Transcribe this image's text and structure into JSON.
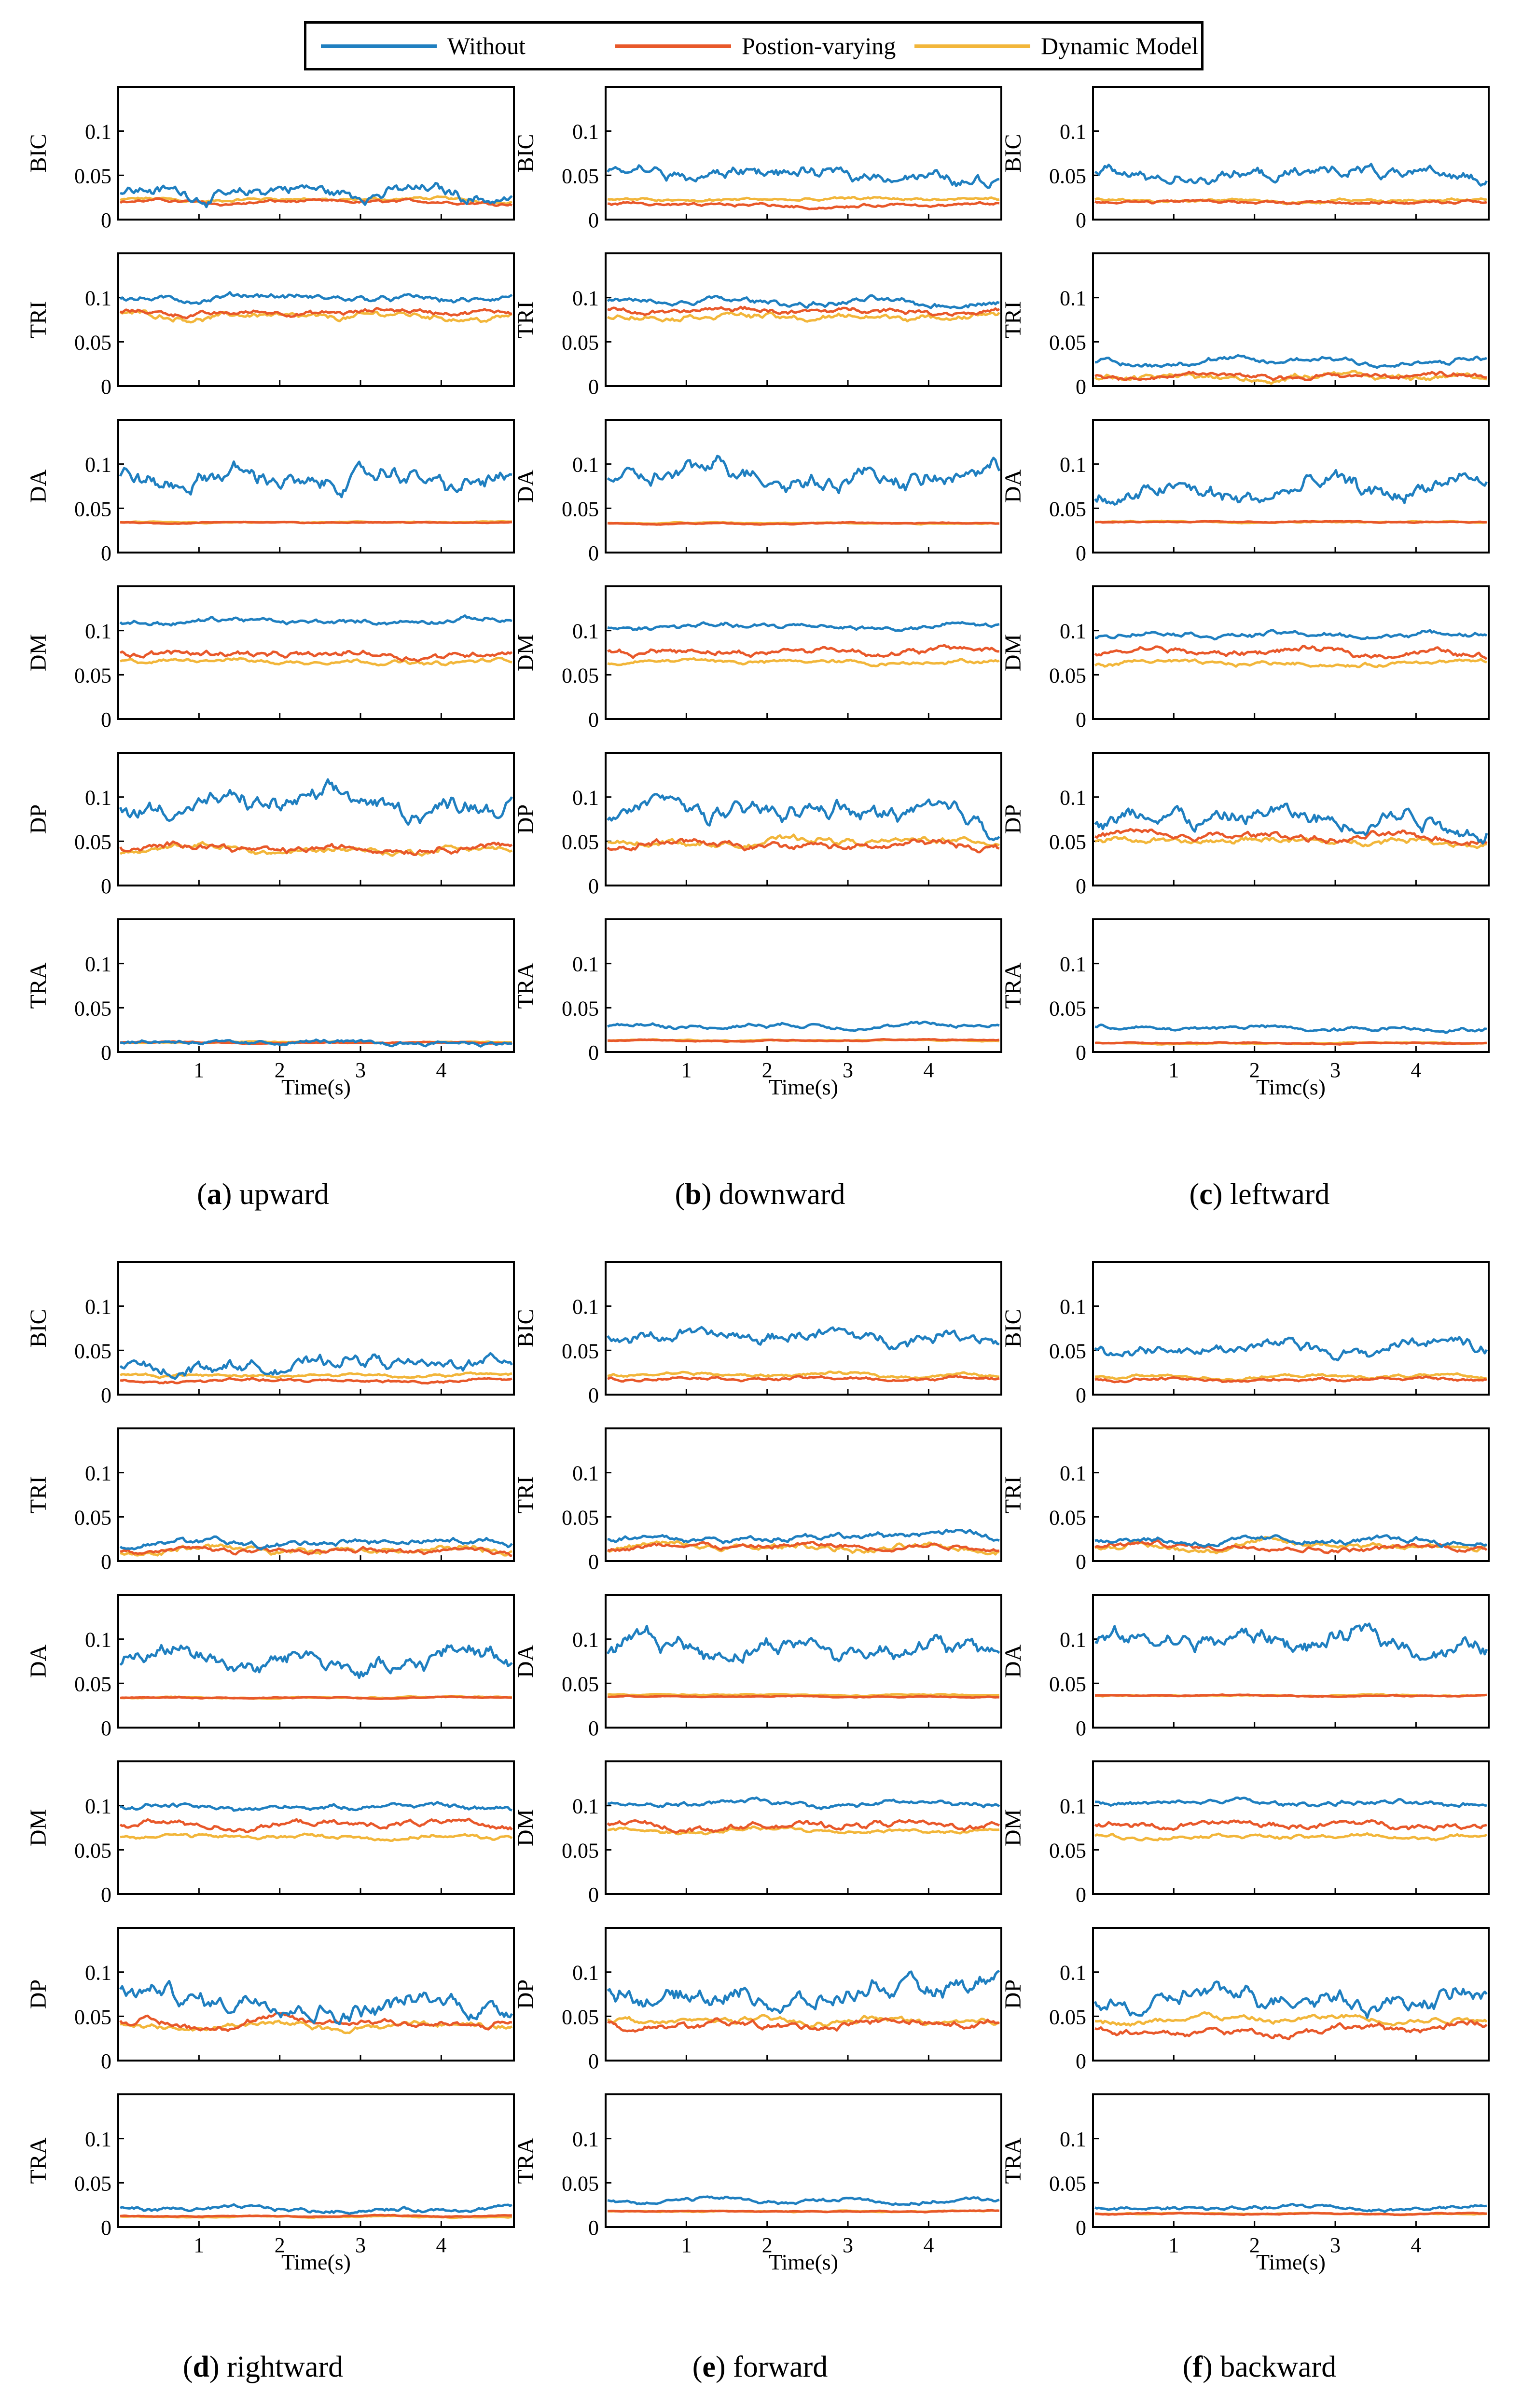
{
  "legend": {
    "items": [
      {
        "label": "Without",
        "color": "#1f7fc0"
      },
      {
        "label": "Postion-varying",
        "color": "#e8582a"
      },
      {
        "label": "Dynamic Model",
        "color": "#f2b63a"
      }
    ]
  },
  "panels": [
    {
      "letter": "a",
      "name": "upward",
      "xlabel": "Time(s)"
    },
    {
      "letter": "b",
      "name": "downward",
      "xlabel": "Time(s)"
    },
    {
      "letter": "c",
      "name": "leftward",
      "xlabel": "Timc(s)"
    },
    {
      "letter": "d",
      "name": "rightward",
      "xlabel": "Time(s)"
    },
    {
      "letter": "e",
      "name": "forward",
      "xlabel": "Time(s)"
    },
    {
      "letter": "f",
      "name": "backward",
      "xlabel": "Time(s)"
    }
  ],
  "chart_data": {
    "type": "line",
    "muscles": [
      "BIC",
      "TRI",
      "DA",
      "DM",
      "DP",
      "TRA"
    ],
    "x_range": [
      0,
      4.9
    ],
    "ylim": [
      0,
      0.15
    ],
    "x_ticks": [
      1,
      2,
      3,
      4
    ],
    "y_ticks": [
      0,
      0.05,
      0.1
    ],
    "y_tick_labels": [
      "0",
      "0.05",
      "0.1"
    ],
    "series_names": [
      "Without",
      "Postion-varying",
      "Dynamic Model"
    ],
    "note_levels": "approximate mean levels [Without, Postion-varying, Dynamic Model] per muscle per panel",
    "levels": {
      "a": {
        "BIC": [
          0.03,
          0.02,
          0.022
        ],
        "TRI": [
          0.098,
          0.083,
          0.08
        ],
        "DA": [
          0.08,
          0.034,
          0.034
        ],
        "DM": [
          0.11,
          0.075,
          0.065
        ],
        "DP": [
          0.09,
          0.043,
          0.04
        ],
        "TRA": [
          0.012,
          0.011,
          0.011
        ]
      },
      "b": {
        "BIC": [
          0.05,
          0.016,
          0.022
        ],
        "TRI": [
          0.095,
          0.085,
          0.078
        ],
        "DA": [
          0.085,
          0.033,
          0.033
        ],
        "DM": [
          0.105,
          0.077,
          0.065
        ],
        "DP": [
          0.085,
          0.045,
          0.05
        ],
        "TRA": [
          0.03,
          0.013,
          0.013
        ]
      },
      "c": {
        "BIC": [
          0.05,
          0.02,
          0.022
        ],
        "TRI": [
          0.027,
          0.012,
          0.012
        ],
        "DA": [
          0.065,
          0.035,
          0.035
        ],
        "DM": [
          0.095,
          0.075,
          0.063
        ],
        "DP": [
          0.07,
          0.055,
          0.05
        ],
        "TRA": [
          0.027,
          0.01,
          0.01
        ]
      },
      "d": {
        "BIC": [
          0.035,
          0.016,
          0.022
        ],
        "TRI": [
          0.02,
          0.012,
          0.012
        ],
        "DA": [
          0.08,
          0.034,
          0.034
        ],
        "DM": [
          0.1,
          0.078,
          0.065
        ],
        "DP": [
          0.07,
          0.042,
          0.04
        ],
        "TRA": [
          0.02,
          0.012,
          0.012
        ]
      },
      "e": {
        "BIC": [
          0.065,
          0.018,
          0.022
        ],
        "TRI": [
          0.028,
          0.015,
          0.015
        ],
        "DA": [
          0.09,
          0.035,
          0.037
        ],
        "DM": [
          0.102,
          0.078,
          0.072
        ],
        "DP": [
          0.075,
          0.04,
          0.045
        ],
        "TRA": [
          0.03,
          0.018,
          0.018
        ]
      },
      "f": {
        "BIC": [
          0.055,
          0.018,
          0.02
        ],
        "TRI": [
          0.025,
          0.017,
          0.017
        ],
        "DA": [
          0.095,
          0.036,
          0.036
        ],
        "DM": [
          0.103,
          0.078,
          0.065
        ],
        "DP": [
          0.07,
          0.035,
          0.045
        ],
        "TRA": [
          0.022,
          0.015,
          0.015
        ]
      }
    },
    "note_variability": "approximate fluctuation amplitude of each series per muscle",
    "variability": {
      "BIC": [
        0.012,
        0.003,
        0.003
      ],
      "TRI": [
        0.006,
        0.005,
        0.006
      ],
      "DA": [
        0.018,
        0.001,
        0.001
      ],
      "DM": [
        0.005,
        0.006,
        0.004
      ],
      "DP": [
        0.018,
        0.007,
        0.006
      ],
      "TRA": [
        0.004,
        0.001,
        0.001
      ]
    }
  }
}
